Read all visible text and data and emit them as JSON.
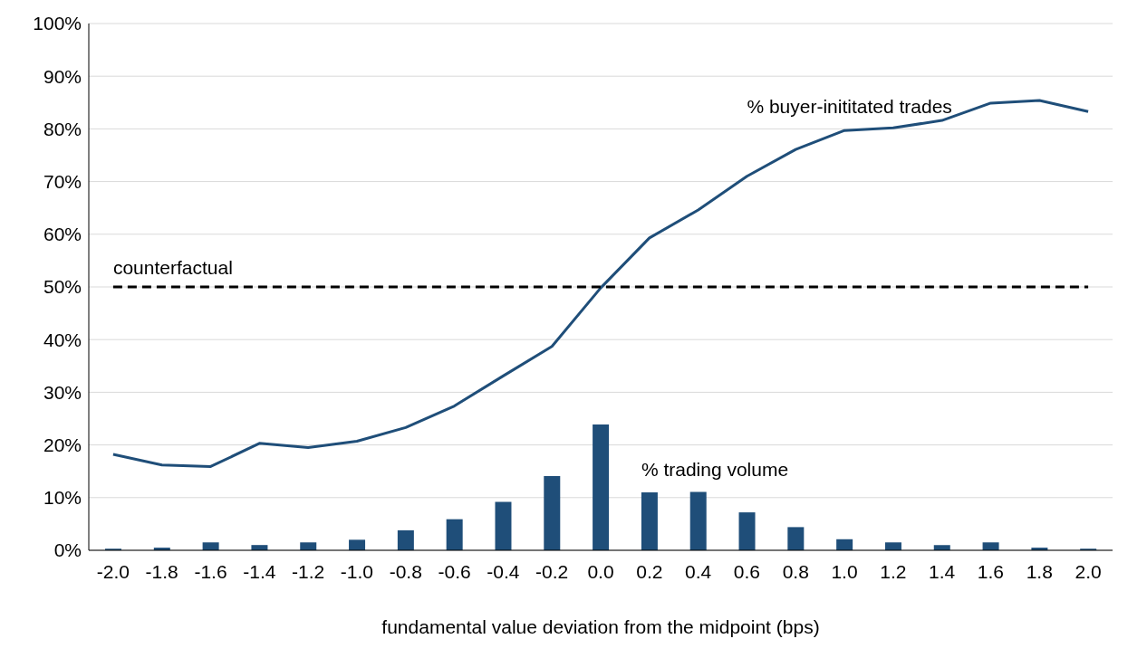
{
  "chart_data": {
    "type": "bar",
    "xlabel": "fundamental value deviation from the midpoint (bps)",
    "categories": [
      "-2.0",
      "-1.8",
      "-1.6",
      "-1.4",
      "-1.2",
      "-1.0",
      "-0.8",
      "-0.6",
      "-0.4",
      "-0.2",
      "0.0",
      "0.2",
      "0.4",
      "0.6",
      "0.8",
      "1.0",
      "1.2",
      "1.4",
      "1.6",
      "1.8",
      "2.0"
    ],
    "series": [
      {
        "name": "% trading volume",
        "color": "#1f4e79",
        "values": [
          0.3,
          0.5,
          1.5,
          1.0,
          1.5,
          2.0,
          3.8,
          5.9,
          9.2,
          14.1,
          23.9,
          11.0,
          11.1,
          7.2,
          4.4,
          2.1,
          1.5,
          1.0,
          1.5,
          0.5,
          0.3
        ]
      },
      {
        "name": "% buyer-inititated trades",
        "type": "line",
        "color": "#1f4e79",
        "values": [
          18.2,
          16.2,
          15.9,
          20.3,
          19.5,
          20.7,
          23.3,
          27.4,
          33.1,
          38.7,
          49.8,
          59.3,
          64.6,
          71.0,
          76.1,
          79.7,
          80.2,
          81.6,
          84.9,
          85.4,
          83.3
        ]
      },
      {
        "name": "counterfactual",
        "type": "line",
        "color": "#000000",
        "line_style": "dashed",
        "values": [
          50,
          50,
          50,
          50,
          50,
          50,
          50,
          50,
          50,
          50,
          50,
          50,
          50,
          50,
          50,
          50,
          50,
          50,
          50,
          50,
          50
        ]
      }
    ],
    "ylim": [
      0,
      100
    ],
    "yticks": [
      {
        "value": 0,
        "label": "0%"
      },
      {
        "value": 10,
        "label": "10%"
      },
      {
        "value": 20,
        "label": "20%"
      },
      {
        "value": 30,
        "label": "30%"
      },
      {
        "value": 40,
        "label": "40%"
      },
      {
        "value": 50,
        "label": "50%"
      },
      {
        "value": 60,
        "label": "60%"
      },
      {
        "value": 70,
        "label": "70%"
      },
      {
        "value": 80,
        "label": "80%"
      },
      {
        "value": 90,
        "label": "90%"
      },
      {
        "value": 100,
        "label": "100%"
      }
    ],
    "grid": "y",
    "legend": false,
    "marker": "none"
  }
}
